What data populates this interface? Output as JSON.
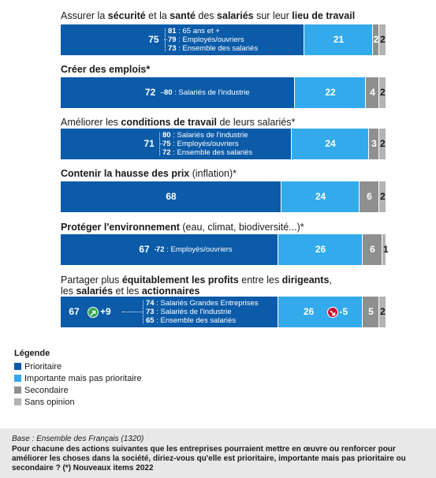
{
  "chart_data": {
    "type": "bar",
    "orientation": "horizontal-stacked",
    "scale_max": 100,
    "series": [
      {
        "name": "Prioritaire",
        "color": "#0b5ba8"
      },
      {
        "name": "Importante mais pas prioritaire",
        "color": "#33aaeb"
      },
      {
        "name": "Secondaire",
        "color": "#8f8f8f"
      },
      {
        "name": "Sans opinion",
        "color": "#b3b3b3"
      }
    ],
    "items": [
      {
        "title_parts": [
          {
            "t": "Assurer la ",
            "b": false
          },
          {
            "t": "sécurité",
            "b": true
          },
          {
            "t": " et la ",
            "b": false
          },
          {
            "t": "santé",
            "b": true
          },
          {
            "t": " des ",
            "b": false
          },
          {
            "t": "salariés",
            "b": true
          },
          {
            "t": " sur leur ",
            "b": false
          },
          {
            "t": "lieu de travail",
            "b": true
          }
        ],
        "title_parts2": [],
        "values": [
          75,
          21,
          2,
          2
        ],
        "subgroups": [
          {
            "value": "81",
            "label": " : 65 ans et +"
          },
          {
            "value": "79",
            "label": " : Employés/ouvriers"
          },
          {
            "value": "73",
            "label": " : Ensemble des salariés"
          }
        ]
      },
      {
        "title_parts": [
          {
            "t": "Créer des emplois*",
            "b": true
          }
        ],
        "title_parts2": [],
        "values": [
          72,
          22,
          4,
          2
        ],
        "subgroups": [
          {
            "value": "80",
            "label": " : Salariés de l'industrie"
          }
        ]
      },
      {
        "title_parts": [
          {
            "t": "Améliorer les ",
            "b": false
          },
          {
            "t": "conditions de travail",
            "b": true
          },
          {
            "t": " de leurs salariés*",
            "b": false
          }
        ],
        "title_parts2": [],
        "values": [
          71,
          24,
          3,
          2
        ],
        "subgroups": [
          {
            "value": "80",
            "label": " : Salariés de l'industrie"
          },
          {
            "value": "75",
            "label": " : Employés/ouvriers"
          },
          {
            "value": "72",
            "label": " : Ensemble des salariés"
          }
        ]
      },
      {
        "title_parts": [
          {
            "t": "Contenir la hausse des prix",
            "b": true
          },
          {
            "t": " (inflation)*",
            "b": false
          }
        ],
        "title_parts2": [],
        "values": [
          68,
          24,
          6,
          2
        ],
        "subgroups": []
      },
      {
        "title_parts": [
          {
            "t": "Protéger l'environnement",
            "b": true
          },
          {
            "t": " (eau, climat, biodiversité...)*",
            "b": false
          }
        ],
        "title_parts2": [],
        "values": [
          67,
          26,
          6,
          1
        ],
        "subgroups": [
          {
            "value": "72",
            "label": " : Employés/ouvriers"
          }
        ]
      },
      {
        "title_parts": [
          {
            "t": "Partager plus ",
            "b": false
          },
          {
            "t": "équitablement les profits",
            "b": true
          },
          {
            "t": " entre les ",
            "b": false
          },
          {
            "t": "dirigeants",
            "b": true
          },
          {
            "t": ",",
            "b": false
          }
        ],
        "title_parts2": [
          {
            "t": "les ",
            "b": false
          },
          {
            "t": "salariés",
            "b": true
          },
          {
            "t": " et les ",
            "b": false
          },
          {
            "t": "actionnaires",
            "b": true
          }
        ],
        "values": [
          67,
          26,
          5,
          2
        ],
        "subgroups": [
          {
            "value": "74",
            "label": " : Salariés Grandes Entreprises"
          },
          {
            "value": "73",
            "label": " : Salariés de l'industrie"
          },
          {
            "value": "65",
            "label": " : Ensemble des salariés"
          }
        ],
        "deltas": [
          "+9",
          "-5"
        ]
      }
    ]
  },
  "legend": {
    "title": "Légende",
    "items": [
      "Prioritaire",
      "Importante mais pas prioritaire",
      "Secondaire",
      "Sans opinion"
    ]
  },
  "footer": {
    "base": "Base : Ensemble des Français (1320)",
    "question": "Pour chacune des actions suivantes que les entreprises pourraient mettre en œuvre ou renforcer pour améliorer les choses dans la société, diriez-vous qu'elle est prioritaire, importante mais pas prioritaire ou secondaire ? (*) Nouveaux items 2022"
  }
}
